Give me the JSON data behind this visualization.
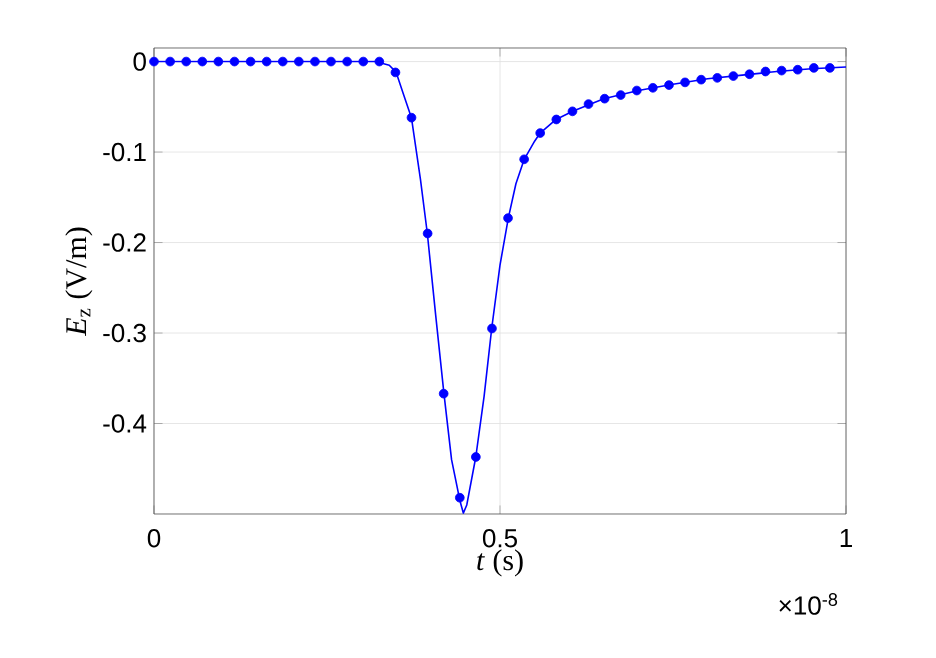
{
  "chart_data": {
    "type": "line",
    "xlabel": "*t* (s)",
    "ylabel": "*E*$_{z}$ (V/m)",
    "xlim": [
      0,
      1
    ],
    "ylim": [
      -0.5,
      0.015
    ],
    "xticks": [
      0,
      0.5,
      1
    ],
    "yticks": [
      -0.4,
      -0.3,
      -0.2,
      -0.1,
      0
    ],
    "grid": true,
    "annotations": [
      "×10$^{-8}$"
    ],
    "series": [
      {
        "color": "#0000ff",
        "marker": "none",
        "line_style": "solid",
        "x": [
          0,
          0.32,
          0.34,
          0.35,
          0.36,
          0.372,
          0.385,
          0.395,
          0.407,
          0.419,
          0.43,
          0.442,
          0.447,
          0.452,
          0.465,
          0.477,
          0.488,
          0.5,
          0.512,
          0.523,
          0.535,
          0.55,
          0.558,
          0.581,
          0.605,
          0.65,
          0.7,
          0.75,
          0.8,
          0.85,
          0.9,
          0.95,
          1
        ],
        "values": [
          0,
          0,
          -0.004,
          -0.012,
          -0.035,
          -0.062,
          -0.13,
          -0.19,
          -0.28,
          -0.367,
          -0.44,
          -0.485,
          -0.499,
          -0.49,
          -0.437,
          -0.37,
          -0.295,
          -0.225,
          -0.173,
          -0.135,
          -0.108,
          -0.088,
          -0.079,
          -0.064,
          -0.055,
          -0.041,
          -0.032,
          -0.025,
          -0.019,
          -0.015,
          -0.011,
          -0.008,
          -0.006
        ]
      },
      {
        "type": "scatter",
        "color": "#0000ff",
        "marker": "circle",
        "x": [
          0,
          0.0233,
          0.0465,
          0.0698,
          0.093,
          0.1163,
          0.1396,
          0.1628,
          0.1861,
          0.2093,
          0.2326,
          0.2558,
          0.2791,
          0.3024,
          0.3256,
          0.3489,
          0.3721,
          0.3954,
          0.4186,
          0.4419,
          0.4651,
          0.4884,
          0.5116,
          0.5349,
          0.5581,
          0.5814,
          0.6047,
          0.6279,
          0.6512,
          0.6744,
          0.6977,
          0.7209,
          0.7442,
          0.7674,
          0.7907,
          0.814,
          0.8372,
          0.8605,
          0.8837,
          0.907,
          0.9302,
          0.9535,
          0.9767
        ],
        "values": [
          0,
          0,
          0,
          0,
          0,
          0,
          0,
          0,
          0,
          0,
          0,
          0,
          0,
          0,
          0,
          -0.012,
          -0.062,
          -0.19,
          -0.367,
          -0.482,
          -0.437,
          -0.295,
          -0.173,
          -0.108,
          -0.079,
          -0.064,
          -0.055,
          -0.047,
          -0.041,
          -0.037,
          -0.032,
          -0.029,
          -0.026,
          -0.023,
          -0.02,
          -0.018,
          -0.016,
          -0.014,
          -0.011,
          -0.01,
          -0.009,
          -0.007,
          -0.007
        ]
      }
    ]
  }
}
